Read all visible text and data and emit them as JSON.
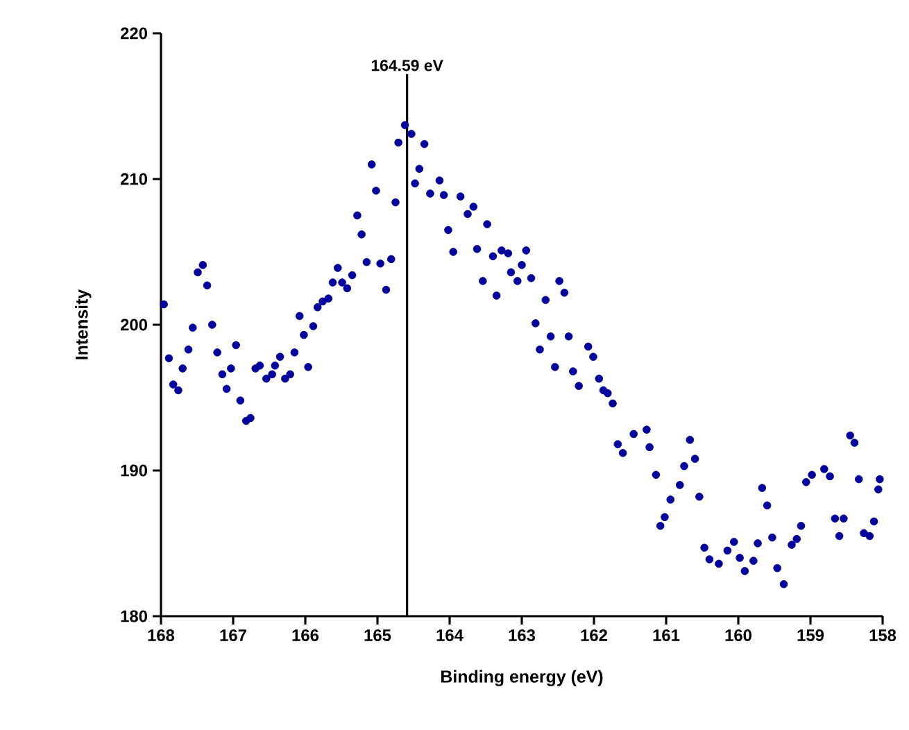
{
  "chart_data": {
    "type": "scatter",
    "xlabel": "Binding energy (eV)",
    "ylabel": "Intensity",
    "xlim": [
      168,
      158
    ],
    "xticks": [
      168,
      167,
      166,
      165,
      164,
      163,
      162,
      161,
      160,
      159,
      158
    ],
    "ylim": [
      180,
      220
    ],
    "yticks": [
      180,
      190,
      200,
      210,
      220
    ],
    "marker": "circle",
    "ref_lines": [
      {
        "axis": "x",
        "value": 164.59,
        "label": "164.59 eV",
        "color": "#000000"
      }
    ],
    "series": [
      {
        "color": "#00009c",
        "x": [
          167.96,
          167.89,
          167.83,
          167.76,
          167.7,
          167.62,
          167.56,
          167.49,
          167.42,
          167.36,
          167.29,
          167.22,
          167.15,
          167.09,
          167.03,
          166.96,
          166.9,
          166.82,
          166.76,
          166.69,
          166.63,
          166.54,
          166.46,
          166.42,
          166.35,
          166.28,
          166.21,
          166.15,
          166.08,
          166.02,
          165.96,
          165.89,
          165.83,
          165.76,
          165.68,
          165.62,
          165.55,
          165.49,
          165.42,
          165.35,
          165.28,
          165.22,
          165.15,
          165.08,
          165.02,
          164.96,
          164.88,
          164.81,
          164.75,
          164.71,
          164.62,
          164.53,
          164.35,
          164.42,
          164.48,
          164.14,
          164.27,
          164.08,
          163.85,
          163.67,
          163.75,
          163.48,
          164.02,
          163.95,
          163.62,
          163.28,
          163.4,
          163.19,
          162.94,
          163.0,
          163.15,
          163.06,
          162.87,
          163.54,
          163.35,
          162.48,
          162.41,
          162.67,
          162.81,
          162.6,
          162.35,
          162.75,
          162.08,
          162.01,
          162.54,
          162.29,
          161.93,
          162.21,
          161.87,
          161.81,
          161.74,
          161.67,
          161.6,
          161.45,
          161.27,
          161.23,
          161.14,
          160.67,
          160.6,
          160.75,
          160.81,
          160.94,
          160.54,
          161.02,
          161.08,
          160.47,
          160.4,
          160.27,
          160.15,
          160.06,
          159.98,
          159.91,
          159.79,
          159.73,
          159.67,
          159.6,
          159.53,
          159.46,
          159.37,
          159.26,
          159.19,
          159.13,
          159.06,
          158.98,
          158.81,
          158.73,
          158.66,
          158.54,
          158.6,
          158.45,
          158.39,
          158.33,
          158.26,
          158.18,
          158.12,
          158.06,
          158.04
        ],
        "values": [
          201.4,
          197.7,
          195.9,
          195.5,
          197.0,
          198.3,
          199.8,
          203.6,
          204.1,
          202.7,
          200.0,
          198.1,
          196.6,
          195.6,
          197.0,
          198.6,
          194.8,
          193.4,
          193.6,
          197.0,
          197.2,
          196.3,
          196.6,
          197.2,
          197.8,
          196.3,
          196.6,
          198.1,
          200.6,
          199.3,
          197.1,
          199.9,
          201.2,
          201.6,
          201.8,
          202.9,
          203.9,
          202.9,
          202.5,
          203.4,
          207.5,
          206.2,
          204.3,
          211.0,
          209.2,
          204.2,
          202.4,
          204.5,
          208.4,
          212.5,
          213.7,
          213.1,
          212.4,
          210.7,
          209.7,
          209.9,
          209.0,
          208.9,
          208.8,
          208.1,
          207.6,
          206.9,
          206.5,
          205.0,
          205.2,
          205.1,
          204.7,
          204.9,
          205.1,
          204.1,
          203.6,
          203.0,
          203.2,
          203.0,
          202.0,
          203.0,
          202.2,
          201.7,
          200.1,
          199.2,
          199.2,
          198.3,
          198.5,
          197.8,
          197.1,
          196.8,
          196.3,
          195.8,
          195.5,
          195.3,
          194.6,
          191.8,
          191.2,
          192.5,
          192.8,
          191.6,
          189.7,
          192.1,
          190.8,
          190.3,
          189.0,
          188.0,
          188.2,
          186.8,
          186.2,
          184.7,
          183.9,
          183.6,
          184.5,
          185.1,
          184.0,
          183.1,
          183.8,
          185.0,
          188.8,
          187.6,
          185.4,
          183.3,
          182.2,
          184.9,
          185.3,
          186.2,
          189.2,
          189.7,
          190.1,
          189.6,
          186.7,
          186.7,
          185.5,
          192.4,
          191.9,
          189.4,
          185.7,
          185.5,
          186.5,
          188.7,
          189.4
        ]
      }
    ]
  }
}
